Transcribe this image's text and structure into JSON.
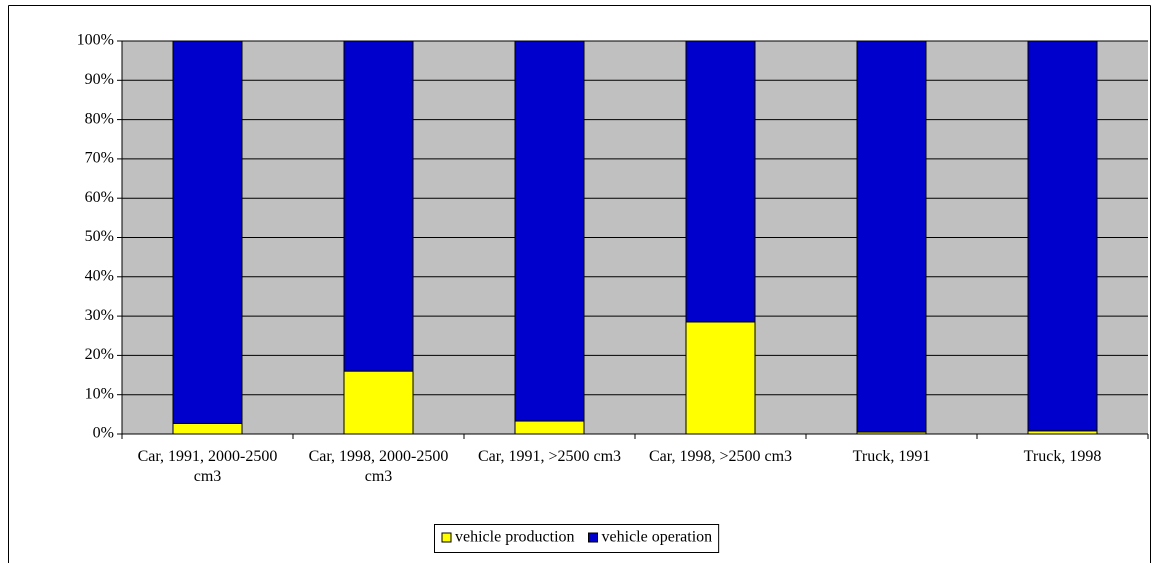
{
  "chart_data": {
    "type": "stacked_bar_100",
    "categories": [
      "Car, 1991, 2000-2500 cm3",
      "Car, 1998, 2000-2500 cm3",
      "Car, 1991, >2500 cm3",
      "Car, 1998, >2500 cm3",
      "Truck, 1991",
      "Truck, 1998"
    ],
    "series": [
      {
        "name": "vehicle production",
        "color": "#ffff00",
        "values": [
          2.7,
          16,
          3.3,
          28.5,
          0.5,
          0.8
        ]
      },
      {
        "name": "vehicle operation",
        "color": "#0000cc",
        "values": [
          97.3,
          84,
          96.7,
          71.5,
          99.5,
          99.2
        ]
      }
    ],
    "ylim": [
      0,
      100
    ],
    "yticks": [
      {
        "value": 0,
        "label": "0%"
      },
      {
        "value": 10,
        "label": "10%"
      },
      {
        "value": 20,
        "label": "20%"
      },
      {
        "value": 30,
        "label": "30%"
      },
      {
        "value": 40,
        "label": "40%"
      },
      {
        "value": 50,
        "label": "50%"
      },
      {
        "value": 60,
        "label": "60%"
      },
      {
        "value": 70,
        "label": "70%"
      },
      {
        "value": 80,
        "label": "80%"
      },
      {
        "value": 90,
        "label": "90%"
      },
      {
        "value": 100,
        "label": "100%"
      }
    ],
    "grid": true,
    "plot_background": "#c0c0c0",
    "legend": "bottom"
  }
}
